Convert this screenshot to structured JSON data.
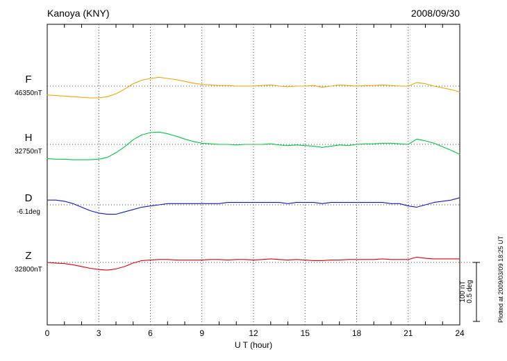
{
  "header": {
    "title": "Kanoya (KNY)",
    "date": "2008/09/30"
  },
  "axes": {
    "x_label": "U T (hour)",
    "x_ticks": [
      0,
      3,
      6,
      9,
      12,
      15,
      18,
      21,
      24
    ],
    "x_min": 0,
    "x_max": 24,
    "grid_hours": [
      3,
      6,
      9,
      12,
      15,
      18,
      21
    ]
  },
  "scale_bar": {
    "nt_label": "100 nT",
    "deg_label": "0.5 deg"
  },
  "plotted_note": "Plotted at 2009/03/09 18:25 UT",
  "colors": {
    "F": "#efa500",
    "H": "#00c83c",
    "D": "#1414cd",
    "Z": "#e00000",
    "axis": "#000000",
    "grid": "#444444"
  },
  "chart_data": {
    "type": "line",
    "title": "Kanoya (KNY) magnetogram",
    "date": "2008/09/30",
    "xlabel": "U T (hour)",
    "x_range": [
      0,
      24
    ],
    "x_start_hour": 0,
    "x_step_hours": 0.5,
    "grid": true,
    "legend_position": "left-of-axis",
    "scale": {
      "per_division_nT": 100,
      "per_division_deg": 0.5
    },
    "series": [
      {
        "name": "F",
        "baseline_label": "46350nT",
        "baseline_value": 46350,
        "unit": "nT",
        "color_key": "F",
        "offsets": [
          -15,
          -16,
          -17,
          -18,
          -19,
          -20,
          -20,
          -18,
          -13,
          -5,
          4,
          10,
          13,
          15,
          13,
          11,
          8,
          5,
          3,
          2,
          1,
          1,
          0,
          0,
          0,
          1,
          2,
          0,
          -1,
          0,
          0,
          1,
          -2,
          0,
          2,
          1,
          0,
          1,
          1,
          2,
          1,
          0,
          0,
          6,
          4,
          0,
          -3,
          -6,
          -10
        ]
      },
      {
        "name": "H",
        "baseline_label": "32750nT",
        "baseline_value": 32750,
        "unit": "nT",
        "color_key": "H",
        "offsets": [
          -24,
          -25,
          -25,
          -26,
          -26,
          -26,
          -25,
          -22,
          -14,
          -4,
          8,
          16,
          20,
          21,
          18,
          14,
          9,
          5,
          2,
          1,
          0,
          0,
          -1,
          0,
          0,
          0,
          1,
          -1,
          -2,
          -1,
          -2,
          -3,
          -5,
          -3,
          -1,
          -2,
          0,
          1,
          1,
          2,
          2,
          1,
          0,
          9,
          6,
          2,
          -4,
          -10,
          -17
        ]
      },
      {
        "name": "D",
        "baseline_label": "-6.1deg",
        "baseline_value": -6.1,
        "unit": "deg",
        "color_key": "D",
        "offsets": [
          0.04,
          0.04,
          0.03,
          0.01,
          -0.02,
          -0.05,
          -0.07,
          -0.08,
          -0.08,
          -0.06,
          -0.04,
          -0.02,
          -0.01,
          0.0,
          0.01,
          0.01,
          0.01,
          0.01,
          0.01,
          0.01,
          0.01,
          0.02,
          0.02,
          0.02,
          0.02,
          0.02,
          0.02,
          0.02,
          0.01,
          0.02,
          0.02,
          0.02,
          0.01,
          0.02,
          0.02,
          0.02,
          0.02,
          0.02,
          0.02,
          0.02,
          0.01,
          0.01,
          -0.01,
          -0.02,
          0.0,
          0.02,
          0.03,
          0.04,
          0.06
        ]
      },
      {
        "name": "Z",
        "baseline_label": "32800nT",
        "baseline_value": 32800,
        "unit": "nT",
        "color_key": "Z",
        "offsets": [
          0,
          -1,
          -2,
          -4,
          -7,
          -10,
          -12,
          -13,
          -11,
          -7,
          -1,
          3,
          4,
          5,
          5,
          4,
          4,
          4,
          4,
          5,
          5,
          4,
          5,
          5,
          4,
          5,
          6,
          5,
          4,
          5,
          4,
          3,
          3,
          4,
          4,
          5,
          5,
          5,
          5,
          6,
          5,
          5,
          5,
          9,
          7,
          6,
          6,
          6,
          6
        ]
      }
    ]
  }
}
